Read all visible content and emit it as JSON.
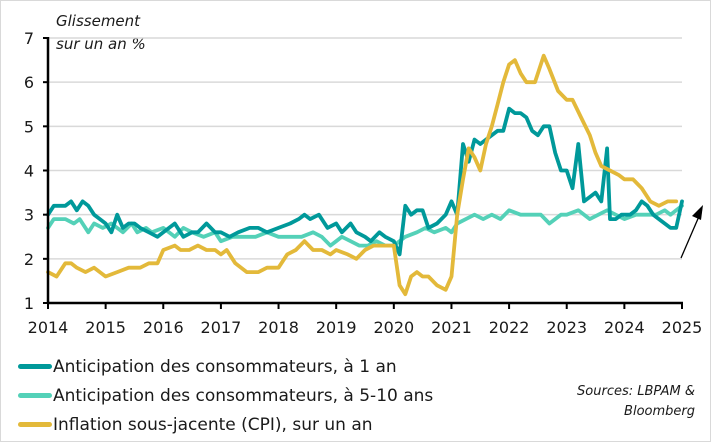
{
  "chart_data": {
    "type": "line",
    "title": "",
    "ylabel": "Glissement sur un an %",
    "ylabel_lines": [
      "Glissement",
      "sur un an %"
    ],
    "xlabel": "",
    "ylim": [
      1,
      7
    ],
    "xlim": [
      2014,
      2025
    ],
    "yticks": [
      1,
      2,
      3,
      4,
      5,
      6,
      7
    ],
    "xticks": [
      2014,
      2015,
      2016,
      2017,
      2018,
      2019,
      2020,
      2021,
      2022,
      2023,
      2024,
      2025
    ],
    "grid": "horizontal",
    "legend_position": "bottom-left",
    "series": [
      {
        "name": "Anticipation des consommateurs, à 1 an",
        "color": "#00999a",
        "x": [
          2014.0,
          2014.1,
          2014.2,
          2014.3,
          2014.4,
          2014.5,
          2014.6,
          2014.7,
          2014.8,
          2014.9,
          2015.0,
          2015.1,
          2015.2,
          2015.3,
          2015.4,
          2015.5,
          2015.6,
          2015.75,
          2015.9,
          2016.0,
          2016.2,
          2016.35,
          2016.5,
          2016.6,
          2016.75,
          2016.9,
          2017.0,
          2017.15,
          2017.3,
          2017.5,
          2017.65,
          2017.8,
          2018.0,
          2018.2,
          2018.35,
          2018.45,
          2018.55,
          2018.7,
          2018.85,
          2019.0,
          2019.1,
          2019.25,
          2019.35,
          2019.5,
          2019.6,
          2019.75,
          2019.85,
          2020.0,
          2020.1,
          2020.2,
          2020.3,
          2020.4,
          2020.5,
          2020.6,
          2020.75,
          2020.9,
          2021.0,
          2021.1,
          2021.2,
          2021.3,
          2021.4,
          2021.5,
          2021.6,
          2021.7,
          2021.8,
          2021.9,
          2022.0,
          2022.1,
          2022.2,
          2022.3,
          2022.4,
          2022.5,
          2022.6,
          2022.7,
          2022.8,
          2022.9,
          2023.0,
          2023.1,
          2023.2,
          2023.3,
          2023.4,
          2023.5,
          2023.6,
          2023.7,
          2023.75,
          2023.85,
          2023.95,
          2024.1,
          2024.2,
          2024.3,
          2024.4,
          2024.5,
          2024.6,
          2024.7,
          2024.8,
          2024.9,
          2025.0
        ],
        "values": [
          3.0,
          3.2,
          3.2,
          3.2,
          3.3,
          3.1,
          3.3,
          3.2,
          3.0,
          2.9,
          2.8,
          2.6,
          3.0,
          2.7,
          2.8,
          2.8,
          2.7,
          2.6,
          2.5,
          2.6,
          2.8,
          2.5,
          2.6,
          2.6,
          2.8,
          2.6,
          2.6,
          2.5,
          2.6,
          2.7,
          2.7,
          2.6,
          2.7,
          2.8,
          2.9,
          3.0,
          2.9,
          3.0,
          2.7,
          2.8,
          2.6,
          2.8,
          2.6,
          2.5,
          2.4,
          2.6,
          2.5,
          2.4,
          2.1,
          3.2,
          3.0,
          3.1,
          3.1,
          2.7,
          2.8,
          3.0,
          3.3,
          3.0,
          4.6,
          4.2,
          4.7,
          4.6,
          4.7,
          4.8,
          4.9,
          4.9,
          5.4,
          5.3,
          5.3,
          5.2,
          4.9,
          4.8,
          5.0,
          5.0,
          4.4,
          4.0,
          4.0,
          3.6,
          4.6,
          3.3,
          3.4,
          3.5,
          3.3,
          4.5,
          2.9,
          2.9,
          3.0,
          3.0,
          3.1,
          3.3,
          3.2,
          3.0,
          2.9,
          2.8,
          2.7,
          2.7,
          3.3
        ]
      },
      {
        "name": "Anticipation des consommateurs, à 5-10 ans",
        "color": "#54d1b8",
        "x": [
          2014.0,
          2014.1,
          2014.3,
          2014.45,
          2014.55,
          2014.7,
          2014.8,
          2014.95,
          2015.1,
          2015.3,
          2015.45,
          2015.55,
          2015.7,
          2015.8,
          2016.0,
          2016.2,
          2016.35,
          2016.5,
          2016.7,
          2016.9,
          2017.0,
          2017.2,
          2017.4,
          2017.6,
          2017.8,
          2018.0,
          2018.2,
          2018.4,
          2018.6,
          2018.75,
          2018.9,
          2019.0,
          2019.1,
          2019.25,
          2019.4,
          2019.55,
          2019.7,
          2019.85,
          2020.0,
          2020.2,
          2020.4,
          2020.55,
          2020.7,
          2020.9,
          2021.0,
          2021.1,
          2021.25,
          2021.4,
          2021.55,
          2021.7,
          2021.85,
          2022.0,
          2022.2,
          2022.4,
          2022.55,
          2022.7,
          2022.9,
          2023.0,
          2023.2,
          2023.4,
          2023.55,
          2023.7,
          2023.85,
          2024.0,
          2024.2,
          2024.4,
          2024.55,
          2024.7,
          2024.8,
          2024.9,
          2025.0
        ],
        "values": [
          2.7,
          2.9,
          2.9,
          2.8,
          2.9,
          2.6,
          2.8,
          2.7,
          2.8,
          2.6,
          2.8,
          2.6,
          2.7,
          2.6,
          2.7,
          2.5,
          2.7,
          2.6,
          2.5,
          2.6,
          2.4,
          2.5,
          2.5,
          2.5,
          2.6,
          2.5,
          2.5,
          2.5,
          2.6,
          2.5,
          2.3,
          2.4,
          2.5,
          2.4,
          2.3,
          2.3,
          2.4,
          2.3,
          2.3,
          2.5,
          2.6,
          2.7,
          2.6,
          2.7,
          2.6,
          2.8,
          2.9,
          3.0,
          2.9,
          3.0,
          2.9,
          3.1,
          3.0,
          3.0,
          3.0,
          2.8,
          3.0,
          3.0,
          3.1,
          2.9,
          3.0,
          3.1,
          3.0,
          2.9,
          3.0,
          3.0,
          3.0,
          3.1,
          3.0,
          3.1,
          3.2
        ]
      },
      {
        "name": "Inflation sous-jacente (CPI), sur un an",
        "color": "#e3b93a",
        "x": [
          2014.0,
          2014.15,
          2014.3,
          2014.4,
          2014.5,
          2014.65,
          2014.8,
          2015.0,
          2015.2,
          2015.4,
          2015.6,
          2015.75,
          2015.9,
          2016.0,
          2016.2,
          2016.3,
          2016.45,
          2016.6,
          2016.75,
          2016.9,
          2017.0,
          2017.1,
          2017.25,
          2017.45,
          2017.65,
          2017.8,
          2018.0,
          2018.15,
          2018.3,
          2018.45,
          2018.6,
          2018.75,
          2018.9,
          2019.0,
          2019.2,
          2019.35,
          2019.5,
          2019.65,
          2019.8,
          2019.95,
          2020.0,
          2020.1,
          2020.2,
          2020.3,
          2020.4,
          2020.5,
          2020.6,
          2020.75,
          2020.9,
          2021.0,
          2021.1,
          2021.2,
          2021.3,
          2021.4,
          2021.5,
          2021.6,
          2021.7,
          2021.8,
          2021.9,
          2022.0,
          2022.1,
          2022.2,
          2022.3,
          2022.45,
          2022.6,
          2022.7,
          2022.85,
          2023.0,
          2023.1,
          2023.25,
          2023.4,
          2023.5,
          2023.6,
          2023.75,
          2023.9,
          2024.0,
          2024.15,
          2024.3,
          2024.45,
          2024.6,
          2024.75,
          2024.9
        ],
        "values": [
          1.7,
          1.6,
          1.9,
          1.9,
          1.8,
          1.7,
          1.8,
          1.6,
          1.7,
          1.8,
          1.8,
          1.9,
          1.9,
          2.2,
          2.3,
          2.2,
          2.2,
          2.3,
          2.2,
          2.2,
          2.1,
          2.2,
          1.9,
          1.7,
          1.7,
          1.8,
          1.8,
          2.1,
          2.2,
          2.4,
          2.2,
          2.2,
          2.1,
          2.2,
          2.1,
          2.0,
          2.2,
          2.3,
          2.3,
          2.3,
          2.3,
          1.4,
          1.2,
          1.6,
          1.7,
          1.6,
          1.6,
          1.4,
          1.3,
          1.6,
          3.0,
          3.8,
          4.5,
          4.3,
          4.0,
          4.6,
          5.0,
          5.5,
          6.0,
          6.4,
          6.5,
          6.2,
          6.0,
          6.0,
          6.6,
          6.3,
          5.8,
          5.6,
          5.6,
          5.2,
          4.8,
          4.4,
          4.1,
          4.0,
          3.9,
          3.8,
          3.8,
          3.6,
          3.3,
          3.2,
          3.3,
          3.3
        ]
      }
    ],
    "annotations": [
      {
        "type": "arrow",
        "description": "arrow pointing up-right at end of series"
      }
    ]
  },
  "legend": {
    "items": [
      {
        "label": "Anticipation des consommateurs, à 1 an",
        "color": "#00999a"
      },
      {
        "label": "Anticipation des consommateurs, à 5-10 ans",
        "color": "#54d1b8"
      },
      {
        "label": "Inflation sous-jacente (CPI), sur un an",
        "color": "#e3b93a"
      }
    ]
  },
  "source": {
    "line1": "Sources: LBPAM &",
    "line2": "Bloomberg"
  }
}
